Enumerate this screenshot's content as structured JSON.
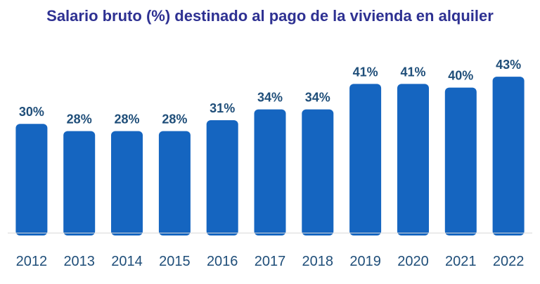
{
  "chart_data": {
    "type": "bar",
    "title": "Salario bruto (%) destinado al pago de la vivienda en alquiler",
    "xlabel": "",
    "ylabel": "",
    "categories": [
      "2012",
      "2013",
      "2014",
      "2015",
      "2016",
      "2017",
      "2018",
      "2019",
      "2020",
      "2021",
      "2022"
    ],
    "values": [
      30,
      28,
      28,
      28,
      31,
      34,
      34,
      41,
      41,
      40,
      43
    ],
    "data_labels": [
      "30%",
      "28%",
      "28%",
      "28%",
      "31%",
      "34%",
      "34%",
      "41%",
      "41%",
      "40%",
      "43%"
    ],
    "value_unit": "%",
    "grid": false,
    "legend": "none",
    "ylim": [
      0,
      45
    ],
    "bar_color": "#1565c0",
    "label_color": "#1f4e79",
    "title_color": "#2e3192"
  }
}
